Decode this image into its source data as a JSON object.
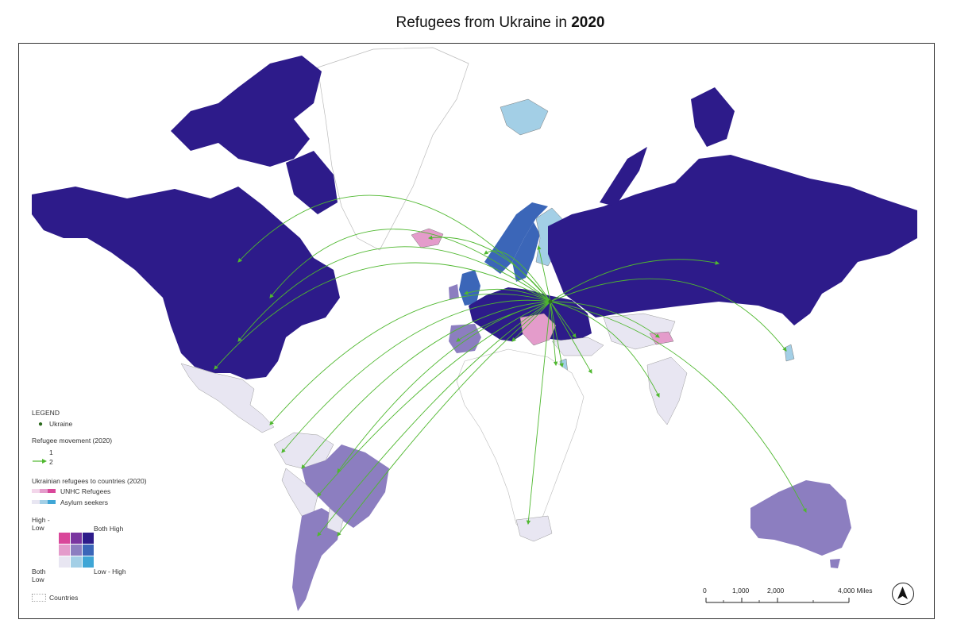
{
  "title": {
    "prefix": "Refugees from Ukraine in",
    "year": "2020"
  },
  "legend": {
    "heading": "LEGEND",
    "origin_label": "Ukraine",
    "movement_heading": "Refugee movement (2020)",
    "movement_min": "1",
    "movement_max": "2",
    "countries_heading": "Ukrainian refugees to countries (2020)",
    "unhcr_label": "UNHC Refugees",
    "asylum_label": "Asylum seekers",
    "high_low_label": "High - Low",
    "both_high_label": "Both High",
    "both_low_label": "Both Low",
    "low_high_label": "Low - High",
    "countries_label": "Countries",
    "bivariate_colors": [
      [
        "#d9479a",
        "#7a35a0",
        "#2d1b8a"
      ],
      [
        "#e49ccb",
        "#8c7ec0",
        "#3b66b8"
      ],
      [
        "#e8e6f2",
        "#a3cfe6",
        "#3fa6d6"
      ]
    ],
    "unhcr_ramp": [
      "#f3d6ea",
      "#e49ccb",
      "#d9479a"
    ],
    "asylum_ramp": [
      "#e8e6f2",
      "#a3cfe6",
      "#3fa6d6"
    ]
  },
  "scale_bar": {
    "labels": [
      "0",
      "1,000",
      "2,000",
      "4,000 Miles"
    ]
  },
  "colors": {
    "both_high": "#2d1b8a",
    "low_high_mid": "#3b66b8",
    "mid_purple": "#8c7ec0",
    "light_purple": "#e8e6f2",
    "pink": "#e49ccb",
    "light_blue": "#a3cfe6",
    "arrow_green": "#4fb82f"
  },
  "icons": {
    "north_arrow": "north-arrow-icon",
    "origin_marker": "origin-dot-icon"
  }
}
